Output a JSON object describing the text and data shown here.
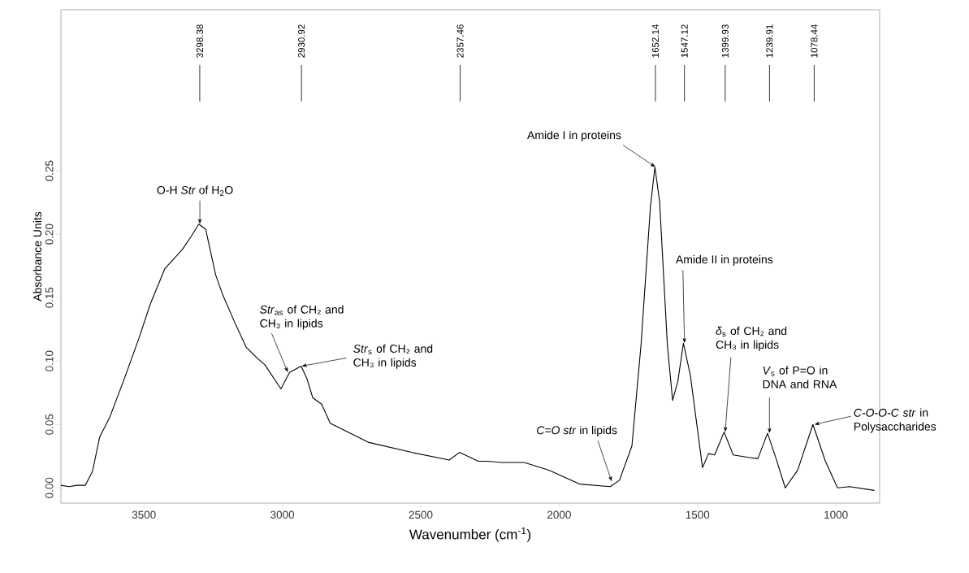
{
  "chart_data": {
    "type": "line",
    "xlabel": "Wavenumber (cm$^{-1}$)",
    "ylabel": "Absorbance Units",
    "x": [
      3800,
      3770,
      3743,
      3712,
      3686,
      3660,
      3623,
      3571,
      3518,
      3477,
      3424,
      3361,
      3330,
      3302,
      3277,
      3241,
      3215,
      3173,
      3131,
      3089,
      3063,
      3005,
      2974,
      2932,
      2911,
      2890,
      2858,
      2827,
      2690,
      2533,
      2397,
      2360,
      2292,
      2259,
      2209,
      2126,
      2037,
      1926,
      1815,
      1782,
      1737,
      1704,
      1670,
      1654,
      1637,
      1609,
      1590,
      1571,
      1551,
      1526,
      1482,
      1460,
      1438,
      1404,
      1371,
      1316,
      1282,
      1247,
      1216,
      1183,
      1138,
      1083,
      1038,
      994,
      950,
      861
    ],
    "values": [
      0.002,
      0.001,
      0.002,
      0.002,
      0.013,
      0.04,
      0.056,
      0.086,
      0.118,
      0.145,
      0.173,
      0.188,
      0.198,
      0.208,
      0.204,
      0.168,
      0.152,
      0.131,
      0.111,
      0.102,
      0.097,
      0.078,
      0.091,
      0.096,
      0.086,
      0.071,
      0.066,
      0.051,
      0.036,
      0.028,
      0.022,
      0.028,
      0.021,
      0.021,
      0.02,
      0.02,
      0.014,
      0.003,
      0.001,
      0.006,
      0.033,
      0.113,
      0.222,
      0.253,
      0.226,
      0.113,
      0.069,
      0.084,
      0.114,
      0.089,
      0.016,
      0.027,
      0.026,
      0.044,
      0.026,
      0.024,
      0.023,
      0.043,
      0.023,
      0.0,
      0.014,
      0.05,
      0.021,
      0.0,
      0.001,
      -0.002
    ],
    "color": "#000000",
    "xlim": [
      3800,
      842
    ],
    "ylim": [
      -0.012,
      0.377
    ],
    "xticks": [
      3500,
      3000,
      2500,
      2000,
      1500,
      1000
    ],
    "yticks": [
      {
        "value": 0,
        "label": "0.00"
      },
      {
        "value": 0.05,
        "label": "0.05"
      },
      {
        "value": 0.1,
        "label": "0.10"
      },
      {
        "value": 0.15,
        "label": "0.15"
      },
      {
        "value": 0.2,
        "label": "0.20"
      },
      {
        "value": 0.25,
        "label": "0.25"
      }
    ],
    "ref_lines": [
      {
        "axis": "x",
        "value": 3298.38,
        "label": "3298.38"
      },
      {
        "axis": "x",
        "value": 2930.92,
        "label": "2930.92"
      },
      {
        "axis": "x",
        "value": 2357.46,
        "label": "2357.46"
      },
      {
        "axis": "x",
        "value": 1652.14,
        "label": "1652.14"
      },
      {
        "axis": "x",
        "value": 1547.12,
        "label": "1547.12"
      },
      {
        "axis": "x",
        "value": 1399.93,
        "label": "1399.93"
      },
      {
        "axis": "x",
        "value": 1239.91,
        "label": "1239.91"
      },
      {
        "axis": "x",
        "value": 1078.44,
        "label": "1078.44"
      }
    ],
    "annotations": [
      {
        "text": "O-H *Str* of H$_{2}$O",
        "x": 3298,
        "y": 0.208
      },
      {
        "text": "*Str*$_{as}$ of CH₂ and CH₃ in lipids",
        "x": 2980,
        "y": 0.091
      },
      {
        "text": "*Str*$_{s}$ of CH₂ and CH₃ in lipids",
        "x": 2930,
        "y": 0.096
      },
      {
        "text": "Amide I in proteins",
        "x": 1652,
        "y": 0.253
      },
      {
        "text": "Amide II in proteins",
        "x": 1547,
        "y": 0.114
      },
      {
        "text": "*δ*$_{s}$ of CH₂ and CH₃ in lipids",
        "x": 1400,
        "y": 0.044
      },
      {
        "text": "*V*$_{s}$ of P=O in DNA and RNA",
        "x": 1240,
        "y": 0.043
      },
      {
        "text": "*C-O-O-C* *str* in Polysaccharides",
        "x": 1078,
        "y": 0.05
      },
      {
        "text": "*C=O* *str* in lipids",
        "x": 1810,
        "y": 0.005
      }
    ]
  }
}
